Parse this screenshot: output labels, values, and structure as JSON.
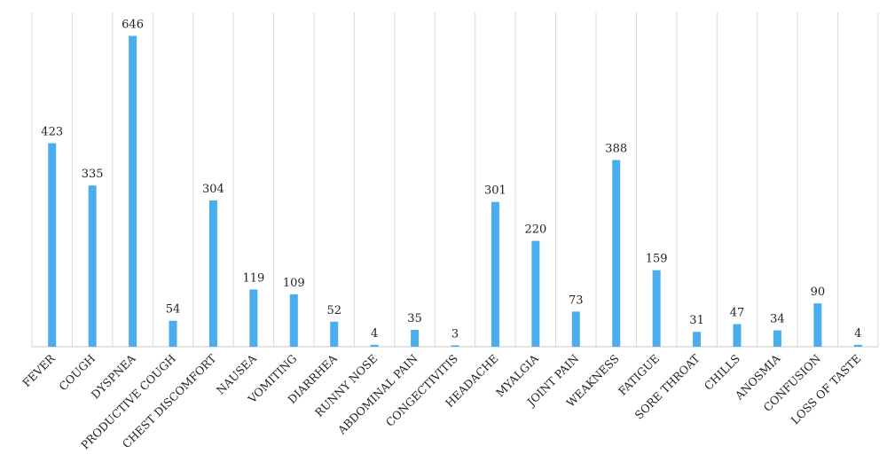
{
  "chart_data": {
    "type": "bar",
    "title": "",
    "xlabel": "",
    "ylabel": "",
    "ylim": [
      0,
      680
    ],
    "grid": "vertical",
    "legend": "none",
    "bar_color": "#4aaeee",
    "categories": [
      "FEVER",
      "COUGH",
      "DYSPNEA",
      "PRODUCTIVE COUGH",
      "CHEST DISCOMFORT",
      "NAUSEA",
      "VOMITING",
      "DIARRHEA",
      "RUNNY NOSE",
      "ABDOMINAL PAIN",
      "CONGECTIVITIS",
      "HEADACHE",
      "MYALGIA",
      "JOINT PAIN",
      "WEAKNESS",
      "FATIGUE",
      "SORE THROAT",
      "CHILLS",
      "ANOSMIA",
      "CONFUSION",
      "LOSS OF TASTE"
    ],
    "values": [
      423,
      335,
      646,
      54,
      304,
      119,
      109,
      52,
      4,
      35,
      3,
      301,
      220,
      73,
      388,
      159,
      31,
      47,
      34,
      90,
      4
    ]
  }
}
